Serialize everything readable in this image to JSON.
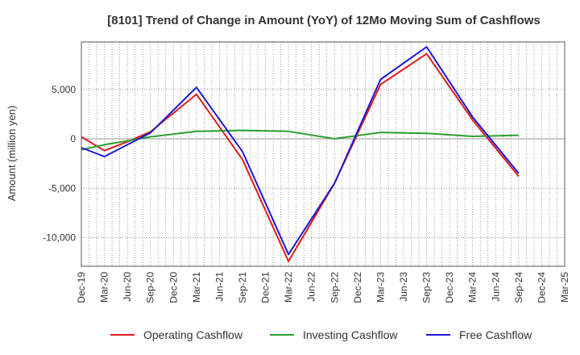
{
  "chart_data": {
    "type": "line",
    "title": "[8101]  Trend of Change in Amount (YoY) of 12Mo Moving Sum of Cashflows",
    "xlabel": "",
    "ylabel": "Amount (million yen)",
    "ylim": [
      -12900,
      9800
    ],
    "yticks": [
      5000,
      0,
      -5000,
      -10000
    ],
    "ytick_labels": [
      "5,000",
      "0",
      "-5,000",
      "-10,000"
    ],
    "xtick_labels": [
      "Dec-19",
      "Mar-20",
      "Jun-20",
      "Sep-20",
      "Dec-20",
      "Mar-21",
      "Jun-21",
      "Sep-21",
      "Dec-21",
      "Mar-22",
      "Jun-22",
      "Sep-22",
      "Dec-22",
      "Mar-23",
      "Jun-23",
      "Sep-23",
      "Dec-23",
      "Mar-24",
      "Jun-24",
      "Sep-24",
      "Dec-24",
      "Mar-25"
    ],
    "grid": true,
    "legend_position": "bottom",
    "series": [
      {
        "name": "Operating Cashflow",
        "color": "#e41a1c",
        "points": [
          [
            0,
            200
          ],
          [
            1,
            -1200
          ],
          [
            2,
            -300
          ],
          [
            3,
            700
          ],
          [
            5,
            4500
          ],
          [
            7,
            -2100
          ],
          [
            9,
            -12400
          ],
          [
            11,
            -4500
          ],
          [
            13,
            5500
          ],
          [
            15,
            8600
          ],
          [
            17,
            1900
          ],
          [
            19,
            -3800
          ]
        ]
      },
      {
        "name": "Investing Cashflow",
        "color": "#2ca02c",
        "points": [
          [
            0,
            -1100
          ],
          [
            1,
            -600
          ],
          [
            2,
            -200
          ],
          [
            3,
            200
          ],
          [
            5,
            750
          ],
          [
            7,
            850
          ],
          [
            9,
            750
          ],
          [
            11,
            0
          ],
          [
            13,
            650
          ],
          [
            15,
            550
          ],
          [
            17,
            250
          ],
          [
            19,
            350
          ]
        ]
      },
      {
        "name": "Free Cashflow",
        "color": "#1a1ad6",
        "points": [
          [
            0,
            -900
          ],
          [
            1,
            -1800
          ],
          [
            2,
            -600
          ],
          [
            3,
            600
          ],
          [
            5,
            5200
          ],
          [
            7,
            -1300
          ],
          [
            9,
            -11700
          ],
          [
            11,
            -4500
          ],
          [
            13,
            6000
          ],
          [
            15,
            9300
          ],
          [
            17,
            2200
          ],
          [
            19,
            -3500
          ]
        ]
      }
    ]
  }
}
